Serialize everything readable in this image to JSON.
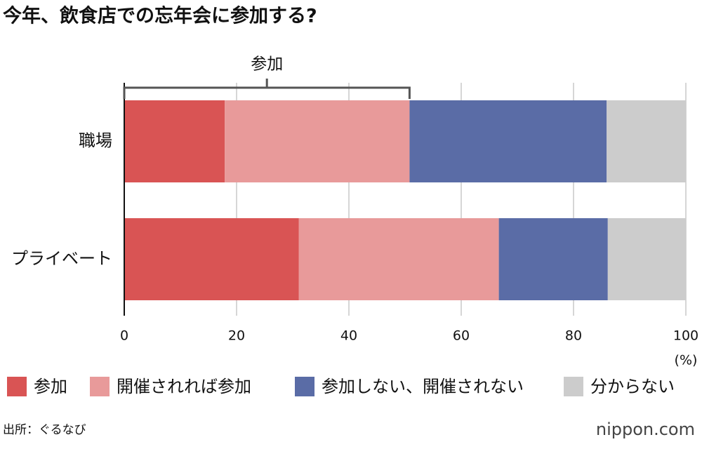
{
  "chart_data": {
    "type": "stacked-bar-horizontal",
    "title": "今年、飲食店での忘年会に参加する?",
    "categories": [
      "職場",
      "プライベート"
    ],
    "series": [
      {
        "name": "参加",
        "color": "#d95454",
        "values": [
          17.9,
          31.1
        ]
      },
      {
        "name": "開催されれば参加",
        "color": "#e89a9a",
        "values": [
          32.9,
          35.6
        ]
      },
      {
        "name": "参加しない、開催されない",
        "color": "#5a6ca6",
        "values": [
          35.1,
          19.4
        ]
      },
      {
        "name": "分からない",
        "color": "#cccccc",
        "values": [
          14.1,
          13.9
        ]
      }
    ],
    "xlim": [
      0,
      100
    ],
    "xticks": [
      0,
      20,
      40,
      60,
      80,
      100
    ],
    "xlabel": "(%)",
    "grid": true,
    "annotation": "参加"
  },
  "source": "出所：ぐるなび",
  "brand": "nippon.com"
}
